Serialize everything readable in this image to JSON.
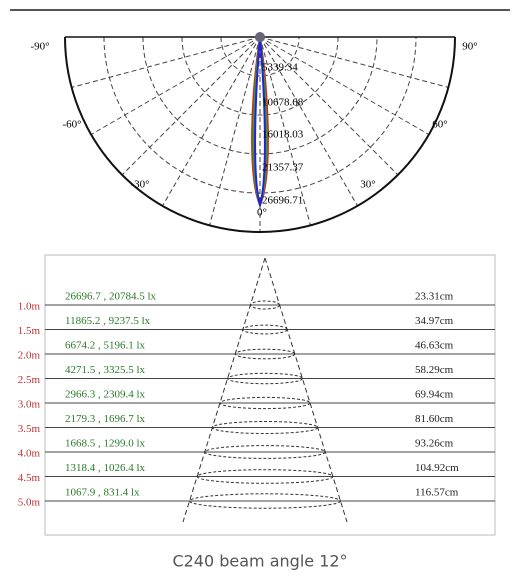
{
  "polar": {
    "angle_labels": [
      "-90°",
      "90°",
      "-60°",
      "60°",
      "-30°",
      "30°",
      "0°"
    ],
    "radial_labels": [
      "5339.34",
      "10678.68",
      "16018.03",
      "21357.37",
      "26696.71"
    ]
  },
  "illuminance": {
    "rows": [
      {
        "distance": "1.0m",
        "lux": "26696.7 , 20784.5 lx",
        "diameter": "23.31cm"
      },
      {
        "distance": "1.5m",
        "lux": "11865.2 , 9237.5 lx",
        "diameter": "34.97cm"
      },
      {
        "distance": "2.0m",
        "lux": "6674.2 , 5196.1 lx",
        "diameter": "46.63cm"
      },
      {
        "distance": "2.5m",
        "lux": "4271.5 , 3325.5 lx",
        "diameter": "58.29cm"
      },
      {
        "distance": "3.0m",
        "lux": "2966.3 , 2309.4 lx",
        "diameter": "69.94cm"
      },
      {
        "distance": "3.5m",
        "lux": "2179.3 , 1696.7 lx",
        "diameter": "81.60cm"
      },
      {
        "distance": "4.0m",
        "lux": "1668.5 , 1299.0 lx",
        "diameter": "93.26cm"
      },
      {
        "distance": "4.5m",
        "lux": "1318.4 , 1026.4 lx",
        "diameter": "104.92cm"
      },
      {
        "distance": "5.0m",
        "lux": "1067.9 , 831.4 lx",
        "diameter": "116.57cm"
      }
    ]
  },
  "caption": "C240 beam angle 12°"
}
